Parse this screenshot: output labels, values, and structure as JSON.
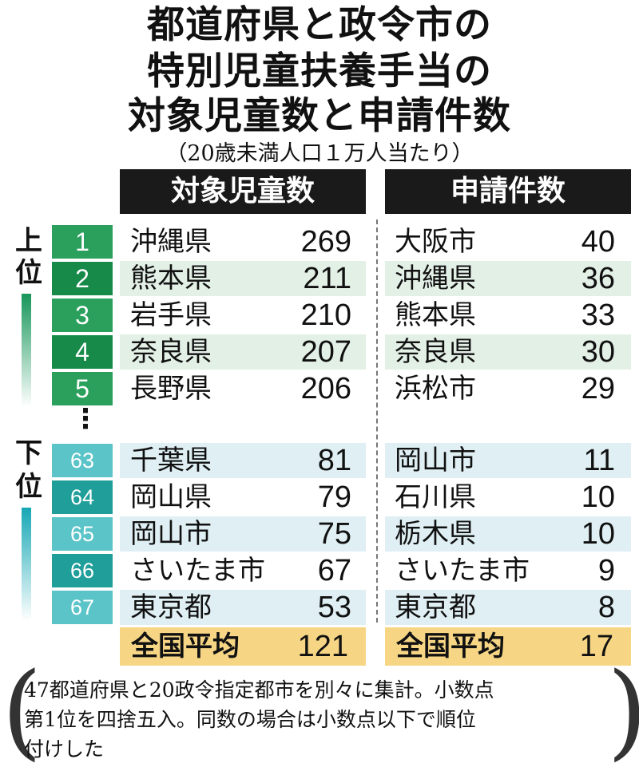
{
  "title_lines": [
    "都道府県と政令市の",
    "特別児童扶養手当の",
    "対象児童数と申請件数"
  ],
  "subtitle": "（20歳未満人口１万人当たり）",
  "labels": {
    "upper": [
      "上",
      "位"
    ],
    "lower": [
      "下",
      "位"
    ],
    "ellipsis": "⋮"
  },
  "colors": {
    "header": "#1a1a1a",
    "green_dark": "#178a4a",
    "green": "#2aa05c",
    "teal_dark": "#1f9e9a",
    "teal": "#5bc4c8",
    "avg_bg": "#f6d685"
  },
  "chart_data": {
    "type": "table",
    "columns": [
      "対象児童数",
      "申請件数"
    ],
    "ranks": [
      "1",
      "2",
      "3",
      "4",
      "5",
      "63",
      "64",
      "65",
      "66",
      "67"
    ],
    "rows": [
      {
        "rank": "1",
        "left_name": "沖縄県",
        "left_value": "269",
        "right_name": "大阪市",
        "right_value": "40"
      },
      {
        "rank": "2",
        "left_name": "熊本県",
        "left_value": "211",
        "right_name": "沖縄県",
        "right_value": "36"
      },
      {
        "rank": "3",
        "left_name": "岩手県",
        "left_value": "210",
        "right_name": "熊本県",
        "right_value": "33"
      },
      {
        "rank": "4",
        "left_name": "奈良県",
        "left_value": "207",
        "right_name": "奈良県",
        "right_value": "30"
      },
      {
        "rank": "5",
        "left_name": "長野県",
        "left_value": "206",
        "right_name": "浜松市",
        "right_value": "29"
      },
      {
        "rank": "63",
        "left_name": "千葉県",
        "left_value": "81",
        "right_name": "岡山市",
        "right_value": "11"
      },
      {
        "rank": "64",
        "left_name": "岡山県",
        "left_value": "79",
        "right_name": "石川県",
        "right_value": "10"
      },
      {
        "rank": "65",
        "left_name": "岡山市",
        "left_value": "75",
        "right_name": "栃木県",
        "right_value": "10"
      },
      {
        "rank": "66",
        "left_name": "さいたま市",
        "left_value": "67",
        "right_name": "さいたま市",
        "right_value": "9"
      },
      {
        "rank": "67",
        "left_name": "東京都",
        "left_value": "53",
        "right_name": "東京都",
        "right_value": "8"
      }
    ],
    "average": {
      "label": "全国平均",
      "left_value": "121",
      "right_value": "17"
    }
  },
  "note_lines": [
    "47都道府県と20政令指定都市を別々に集計。小数点",
    "第1位を四捨五入。同数の場合は小数点以下で順位",
    "付けした"
  ],
  "note_parens": [
    "(",
    ")"
  ]
}
